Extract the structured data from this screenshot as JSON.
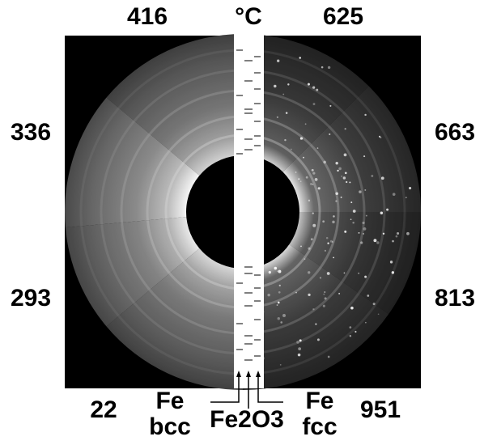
{
  "unit_label": "°C",
  "sector_labels": [
    "416",
    "625",
    "336",
    "663",
    "293",
    "813",
    "22",
    "951"
  ],
  "phase_labels": [
    [
      "Fe",
      "bcc"
    ],
    [
      "Fe2O3"
    ],
    [
      "Fe",
      "fcc"
    ]
  ]
}
